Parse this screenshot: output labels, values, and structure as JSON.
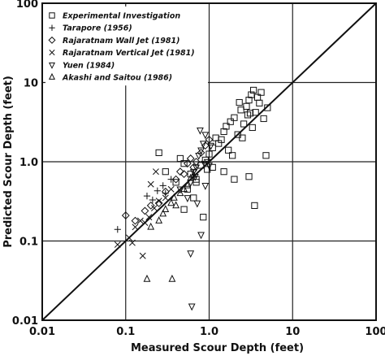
{
  "chart_data": {
    "type": "scatter",
    "xscale": "log",
    "yscale": "log",
    "xlim": [
      0.01,
      100
    ],
    "ylim": [
      0.01,
      100
    ],
    "xlabel": "Measured Scour Depth (feet)",
    "ylabel": "Predicted Scour Depth (feet)",
    "xticks": [
      "0.01",
      "0.1",
      "1.0",
      "10",
      "100"
    ],
    "yticks": [
      "0.01",
      "0.1",
      "1.0",
      "10",
      "100"
    ],
    "grid": true,
    "legend_position": "top-left",
    "reference_line": "1:1 line (predicted = measured)",
    "series": [
      {
        "name": "Experimental Investigation",
        "marker": "square",
        "points": [
          [
            0.25,
            1.3
          ],
          [
            0.45,
            1.1
          ],
          [
            0.5,
            0.95
          ],
          [
            0.3,
            0.75
          ],
          [
            0.6,
            0.7
          ],
          [
            0.55,
            0.45
          ],
          [
            0.7,
            0.6
          ],
          [
            0.4,
            0.55
          ],
          [
            0.8,
            0.9
          ],
          [
            0.9,
            1.05
          ],
          [
            1.0,
            1.25
          ],
          [
            1.1,
            1.5
          ],
          [
            1.3,
            1.7
          ],
          [
            1.2,
            2.0
          ],
          [
            1.5,
            2.4
          ],
          [
            1.4,
            1.9
          ],
          [
            1.6,
            2.8
          ],
          [
            1.8,
            3.2
          ],
          [
            2.0,
            3.6
          ],
          [
            2.2,
            2.2
          ],
          [
            2.4,
            4.5
          ],
          [
            2.6,
            3.0
          ],
          [
            2.8,
            5.0
          ],
          [
            3.0,
            6.0
          ],
          [
            3.2,
            7.0
          ],
          [
            3.4,
            8.0
          ],
          [
            3.6,
            4.2
          ],
          [
            3.8,
            6.5
          ],
          [
            4.0,
            5.5
          ],
          [
            4.2,
            7.5
          ],
          [
            4.5,
            3.5
          ],
          [
            3.3,
            2.7
          ],
          [
            2.5,
            2.0
          ],
          [
            2.9,
            3.9
          ],
          [
            1.7,
            1.4
          ],
          [
            1.9,
            1.2
          ],
          [
            1.1,
            0.85
          ],
          [
            0.95,
            0.8
          ],
          [
            1.5,
            0.75
          ],
          [
            2.0,
            0.6
          ],
          [
            3.0,
            0.65
          ],
          [
            3.5,
            0.28
          ],
          [
            0.7,
            0.55
          ],
          [
            0.65,
            0.35
          ],
          [
            0.5,
            0.25
          ],
          [
            0.85,
            0.2
          ],
          [
            4.8,
            1.2
          ],
          [
            5.0,
            4.8
          ],
          [
            2.3,
            5.6
          ],
          [
            3.1,
            4.1
          ]
        ]
      },
      {
        "name": "Tarapore (1956)",
        "marker": "plus",
        "points": [
          [
            0.08,
            0.14
          ],
          [
            0.18,
            0.37
          ],
          [
            0.21,
            0.33
          ],
          [
            0.24,
            0.43
          ],
          [
            0.28,
            0.5
          ],
          [
            0.3,
            0.4
          ],
          [
            0.35,
            0.6
          ]
        ]
      },
      {
        "name": "Rajaratnam Wall Jet (1981)",
        "marker": "diamond",
        "points": [
          [
            0.1,
            0.21
          ],
          [
            0.13,
            0.18
          ],
          [
            0.17,
            0.24
          ],
          [
            0.2,
            0.28
          ],
          [
            0.25,
            0.3
          ],
          [
            0.3,
            0.42
          ],
          [
            0.4,
            0.6
          ],
          [
            0.45,
            0.75
          ],
          [
            0.5,
            0.7
          ],
          [
            0.55,
            0.95
          ],
          [
            0.6,
            1.1
          ],
          [
            0.65,
            0.85
          ],
          [
            0.8,
            1.3
          ],
          [
            0.9,
            1.6
          ],
          [
            1.0,
            1.9
          ],
          [
            0.7,
            1.0
          ]
        ]
      },
      {
        "name": "Rajaratnam Vertical Jet (1981)",
        "marker": "cross",
        "points": [
          [
            0.08,
            0.09
          ],
          [
            0.11,
            0.11
          ],
          [
            0.13,
            0.15
          ],
          [
            0.15,
            0.18
          ],
          [
            0.17,
            0.17
          ],
          [
            0.19,
            0.2
          ],
          [
            0.22,
            0.26
          ],
          [
            0.25,
            0.32
          ],
          [
            0.3,
            0.35
          ],
          [
            0.35,
            0.45
          ],
          [
            0.12,
            0.095
          ],
          [
            0.16,
            0.065
          ],
          [
            0.2,
            0.52
          ],
          [
            0.23,
            0.75
          ]
        ]
      },
      {
        "name": "Yuen (1984)",
        "marker": "triangle-down",
        "points": [
          [
            0.45,
            0.45
          ],
          [
            0.55,
            0.35
          ],
          [
            0.6,
            0.55
          ],
          [
            0.65,
            0.75
          ],
          [
            0.7,
            0.85
          ],
          [
            0.75,
            1.2
          ],
          [
            0.8,
            1.4
          ],
          [
            0.85,
            1.7
          ],
          [
            0.9,
            2.2
          ],
          [
            0.95,
            1.0
          ],
          [
            1.0,
            0.9
          ],
          [
            0.68,
            0.65
          ],
          [
            0.72,
            0.3
          ],
          [
            0.6,
            0.07
          ],
          [
            0.62,
            0.015
          ],
          [
            0.8,
            0.12
          ],
          [
            0.9,
            0.5
          ],
          [
            1.05,
            1.6
          ],
          [
            0.78,
            2.5
          ],
          [
            0.88,
            0.95
          ]
        ]
      },
      {
        "name": "Akashi and Saitou (1986)",
        "marker": "triangle-up",
        "points": [
          [
            0.2,
            0.15
          ],
          [
            0.28,
            0.22
          ],
          [
            0.35,
            0.3
          ],
          [
            0.45,
            0.4
          ],
          [
            0.55,
            0.5
          ],
          [
            0.25,
            0.18
          ],
          [
            0.38,
            0.35
          ],
          [
            0.5,
            0.45
          ],
          [
            0.6,
            0.62
          ],
          [
            0.65,
            0.68
          ],
          [
            0.4,
            0.28
          ],
          [
            0.3,
            0.25
          ],
          [
            0.18,
            0.033
          ],
          [
            0.36,
            0.033
          ]
        ]
      }
    ]
  }
}
